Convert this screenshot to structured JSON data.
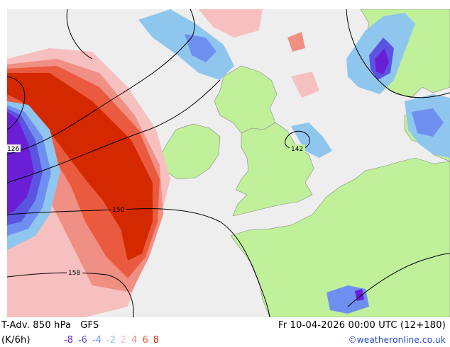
{
  "footer": {
    "title": "T-Adv. 850 hPa   GFS",
    "units": "(K/6h)",
    "valid_time": "Fr 10-04-2026 00:00 UTC (12+180)",
    "credit": "©weatheronline.co.uk"
  },
  "legend": [
    {
      "value": "-8",
      "color": "#6a1fd6"
    },
    {
      "value": "-6",
      "color": "#5b54e0"
    },
    {
      "value": "-4",
      "color": "#6f8ff0"
    },
    {
      "value": "-2",
      "color": "#8fc6ee"
    },
    {
      "value": "2",
      "color": "#f7c0c0"
    },
    {
      "value": "4",
      "color": "#f08f84"
    },
    {
      "value": "6",
      "color": "#ea5a3e"
    },
    {
      "value": "8",
      "color": "#d42800"
    }
  ],
  "contours": {
    "labels": [
      "126",
      "142",
      "150",
      "158"
    ]
  },
  "colors": {
    "sea": "#eeeeee",
    "land": "#c0f09a",
    "contour": "#000000",
    "border": "#555555"
  }
}
